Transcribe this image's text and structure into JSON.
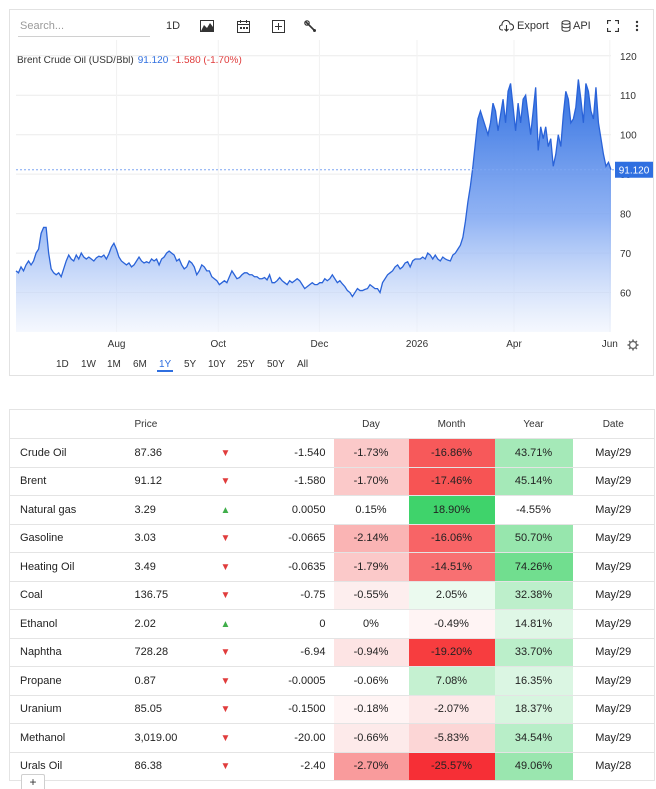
{
  "toolbar": {
    "search_placeholder": "Search...",
    "interval_label": "1D",
    "export_label": "Export",
    "api_label": "API"
  },
  "chart_header": {
    "name": "Brent Crude Oil (USD/Bbl)",
    "price": "91.120",
    "change": "-1.580 (-1.70%)"
  },
  "range_buttons": [
    "1D",
    "1W",
    "1M",
    "6M",
    "1Y",
    "5Y",
    "10Y",
    "25Y",
    "50Y",
    "All"
  ],
  "active_range": "1Y",
  "chart_data": {
    "type": "area",
    "title": "Brent Crude Oil (USD/Bbl)",
    "x_tick_labels": [
      "Aug",
      "Oct",
      "Dec",
      "2026",
      "Apr",
      "Jun"
    ],
    "y_tick_labels": [
      "60",
      "70",
      "80",
      "90",
      "100",
      "110",
      "120"
    ],
    "ylim": [
      50,
      124
    ],
    "last_value_label": "91.120",
    "last_value": 91.12,
    "series": [
      {
        "values": [
          65.5,
          65,
          66.5,
          65.5,
          67,
          68,
          67,
          68,
          70,
          71,
          75,
          76.5,
          76.5,
          70,
          66,
          65,
          64.5,
          65,
          64,
          66,
          68,
          69.5,
          68.5,
          68,
          69.5,
          68.5,
          70,
          69,
          68.5,
          69,
          68.5,
          68,
          68.8,
          69.2,
          69,
          69.5,
          68.5,
          69.8,
          71.5,
          72.5,
          71,
          69,
          68,
          67.5,
          67,
          67.5,
          66.5,
          67,
          68,
          69,
          68,
          67.5,
          67.8,
          67.5,
          68.5,
          68,
          68.5,
          67,
          68.5,
          69,
          70,
          70.5,
          70,
          69.5,
          68,
          68.5,
          67,
          66,
          66.5,
          68,
          67.5,
          66.5,
          64.5,
          65.5,
          67,
          66.5,
          65.5,
          65.5,
          64,
          63.5,
          63,
          62,
          62.5,
          63,
          62.5,
          64,
          65.5,
          64.5,
          63.5,
          63.8,
          64.5,
          65,
          65,
          64.5,
          64.5,
          64,
          64,
          63.5,
          63.5,
          63.8,
          63.2,
          64.5,
          62.5,
          62.5,
          63,
          63.8,
          63,
          62.5,
          62,
          63,
          62.5,
          63,
          63.5,
          63,
          62,
          61,
          61.5,
          62,
          62.5,
          62,
          62,
          62.5,
          62.5,
          63.5,
          63,
          63.5,
          64.5,
          63.5,
          62.5,
          63,
          62.2,
          61.5,
          60.5,
          60,
          59,
          60,
          61,
          60.5,
          60.5,
          60.8,
          61,
          62,
          61.5,
          61,
          61,
          60,
          62.5,
          63.5,
          64.5,
          65,
          65.5,
          66.5,
          67,
          66,
          66.5,
          67.5,
          67.8,
          66.5,
          68,
          68.5,
          68.5,
          68.5,
          69,
          68.5,
          70,
          69.5,
          68.5,
          69.5,
          68.5,
          68,
          69,
          68.5,
          68.2,
          68,
          69.5,
          70,
          71,
          72,
          74,
          78,
          83,
          87,
          92,
          98,
          104,
          106,
          104,
          102,
          100,
          103,
          108,
          106,
          101,
          105,
          109,
          103,
          111,
          113,
          107,
          101,
          108,
          103,
          109,
          110,
          105,
          100,
          106,
          112,
          96,
          102,
          99,
          102,
          97,
          99,
          92,
          95,
          100,
          97,
          105,
          111,
          109,
          103,
          104,
          107,
          114,
          109,
          103,
          113,
          111,
          106,
          104,
          112,
          103,
          99,
          95,
          92,
          93,
          91.12
        ]
      }
    ]
  },
  "table": {
    "headers": [
      "",
      "Price",
      "",
      "",
      "Day",
      "Month",
      "Year",
      "Date"
    ],
    "rows": [
      {
        "name": "Crude Oil",
        "price": "87.36",
        "dir": "down",
        "change": "-1.540",
        "day": "-1.73%",
        "month": "-16.86%",
        "year": "43.71%",
        "date": "May/29",
        "colors": {
          "day": "#fbc9c9",
          "month": "#f7595a",
          "year": "#a5e9b8"
        }
      },
      {
        "name": "Brent",
        "price": "91.12",
        "dir": "down",
        "change": "-1.580",
        "day": "-1.70%",
        "month": "-17.46%",
        "year": "45.14%",
        "date": "May/29",
        "colors": {
          "day": "#fbc9c9",
          "month": "#f75454",
          "year": "#a5e9b8"
        }
      },
      {
        "name": "Natural gas",
        "price": "3.29",
        "dir": "up",
        "change": "0.0050",
        "day": "0.15%",
        "month": "18.90%",
        "year": "-4.55%",
        "date": "May/29",
        "colors": {
          "day": "#ffffff",
          "month": "#3fd36b",
          "year": "#ffffff"
        }
      },
      {
        "name": "Gasoline",
        "price": "3.03",
        "dir": "down",
        "change": "-0.0665",
        "day": "-2.14%",
        "month": "-16.06%",
        "year": "50.70%",
        "date": "May/29",
        "colors": {
          "day": "#fab4b4",
          "month": "#f86466",
          "year": "#97e6ad"
        }
      },
      {
        "name": "Heating Oil",
        "price": "3.49",
        "dir": "down",
        "change": "-0.0635",
        "day": "-1.79%",
        "month": "-14.51%",
        "year": "74.26%",
        "date": "May/29",
        "colors": {
          "day": "#fbc9c9",
          "month": "#f87072",
          "year": "#71de8f"
        }
      },
      {
        "name": "Coal",
        "price": "136.75",
        "dir": "down",
        "change": "-0.75",
        "day": "-0.55%",
        "month": "2.05%",
        "year": "32.38%",
        "date": "May/29",
        "colors": {
          "day": "#fdeeee",
          "month": "#ebfaef",
          "year": "#bdefcb"
        }
      },
      {
        "name": "Ethanol",
        "price": "2.02",
        "dir": "up",
        "change": "0",
        "day": "0%",
        "month": "-0.49%",
        "year": "14.81%",
        "date": "May/29",
        "colors": {
          "day": "#ffffff",
          "month": "#fff4f4",
          "year": "#dff7e6"
        }
      },
      {
        "name": "Naphtha",
        "price": "728.28",
        "dir": "down",
        "change": "-6.94",
        "day": "-0.94%",
        "month": "-19.20%",
        "year": "33.70%",
        "date": "May/29",
        "colors": {
          "day": "#fde4e4",
          "month": "#f73d3f",
          "year": "#bbefca"
        }
      },
      {
        "name": "Propane",
        "price": "0.87",
        "dir": "down",
        "change": "-0.0005",
        "day": "-0.06%",
        "month": "7.08%",
        "year": "16.35%",
        "date": "May/29",
        "colors": {
          "day": "#ffffff",
          "month": "#c5f1d1",
          "year": "#dbf6e3"
        }
      },
      {
        "name": "Uranium",
        "price": "85.05",
        "dir": "down",
        "change": "-0.1500",
        "day": "-0.18%",
        "month": "-2.07%",
        "year": "18.37%",
        "date": "May/29",
        "colors": {
          "day": "#fff4f4",
          "month": "#fde8e8",
          "year": "#d7f5df"
        }
      },
      {
        "name": "Methanol",
        "price": "3,019.00",
        "dir": "down",
        "change": "-20.00",
        "day": "-0.66%",
        "month": "-5.83%",
        "year": "34.54%",
        "date": "May/29",
        "colors": {
          "day": "#fdeaea",
          "month": "#fcd6d6",
          "year": "#b8eec8"
        }
      },
      {
        "name": "Urals Oil",
        "price": "86.38",
        "dir": "down",
        "change": "-2.40",
        "day": "-2.70%",
        "month": "-25.57%",
        "year": "49.06%",
        "date": "May/28",
        "colors": {
          "day": "#f99b9c",
          "month": "#f62f36",
          "year": "#9ae6af"
        }
      }
    ]
  },
  "colors": {
    "accent": "#2f6fe0",
    "down": "#e03c3c",
    "up": "#3fae4a"
  }
}
